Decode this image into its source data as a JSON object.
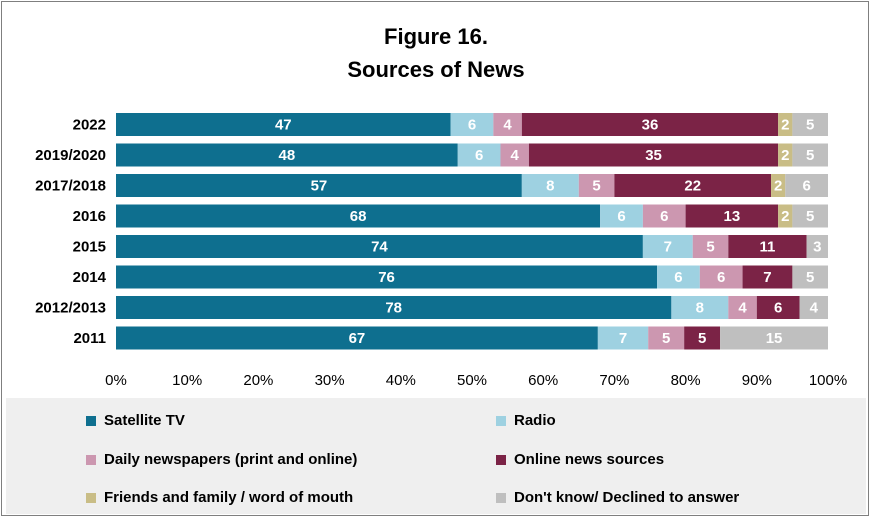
{
  "title_line1": "Figure 16.",
  "title_line2": "Sources of News",
  "chart_data": {
    "type": "bar",
    "orientation": "horizontal",
    "stacked": "percent",
    "categories": [
      "2022",
      "2019/2020",
      "2017/2018",
      "2016",
      "2015",
      "2014",
      "2012/2013",
      "2011"
    ],
    "series": [
      {
        "name": "Satellite TV",
        "color": "#0e6f8f",
        "values": [
          47,
          48,
          57,
          68,
          74,
          76,
          78,
          67
        ]
      },
      {
        "name": "Radio",
        "color": "#9ed1e1",
        "values": [
          6,
          6,
          8,
          6,
          7,
          6,
          8,
          7
        ]
      },
      {
        "name": "Daily newspapers (print and online)",
        "color": "#cc97b0",
        "values": [
          4,
          4,
          5,
          6,
          5,
          6,
          4,
          5
        ]
      },
      {
        "name": "Online news sources",
        "color": "#7b2346",
        "values": [
          36,
          35,
          22,
          13,
          11,
          7,
          6,
          5
        ]
      },
      {
        "name": "Friends and family / word of mouth",
        "color": "#c9bd86",
        "values": [
          2,
          2,
          2,
          2,
          0,
          0,
          0,
          0
        ]
      },
      {
        "name": "Don't know/ Declined to answer",
        "color": "#bfbfbf",
        "values": [
          5,
          5,
          6,
          5,
          3,
          5,
          4,
          15
        ]
      }
    ],
    "xticks": [
      "0%",
      "10%",
      "20%",
      "30%",
      "40%",
      "50%",
      "60%",
      "70%",
      "80%",
      "90%",
      "100%"
    ],
    "xlim": [
      0,
      100
    ],
    "grid": false,
    "legend_position": "bottom"
  }
}
